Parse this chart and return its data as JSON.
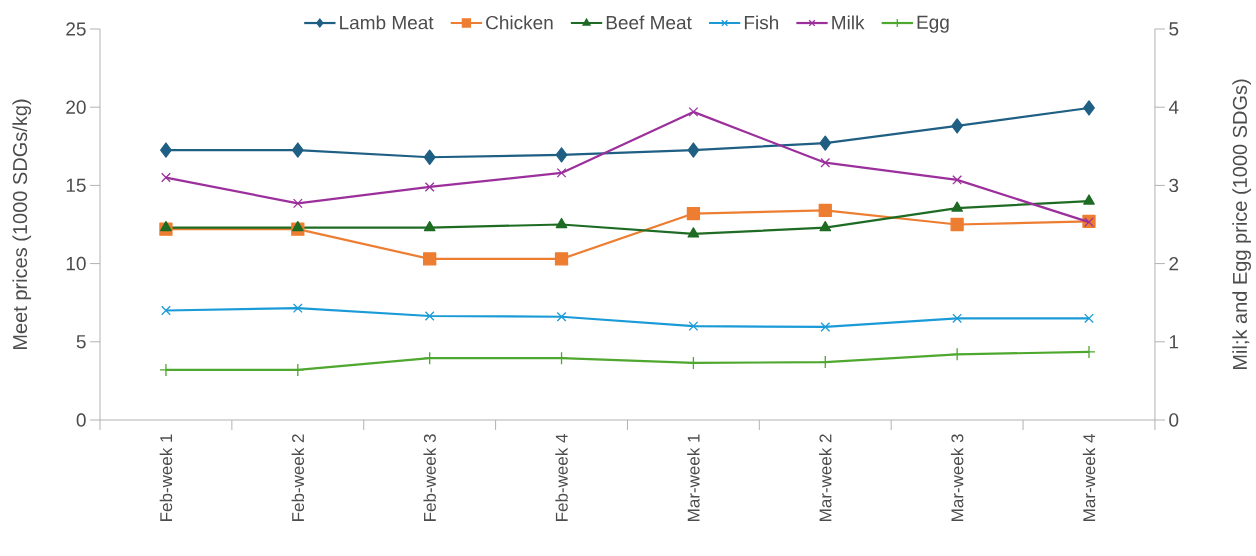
{
  "chart_data": {
    "type": "line",
    "ylabel": "Meet prices (1000 SDGs/kg)",
    "y2label": "Mil;k and Egg price (1000 SDGs)",
    "categories": [
      "Feb-week 1",
      "Feb-week 2",
      "Feb-week 3",
      "Feb-week 4",
      "Mar-week 1",
      "Mar-week 2",
      "Mar-week 3",
      "Mar-week 4"
    ],
    "series": [
      {
        "name": "Lamb Meat",
        "color": "#1f5f84",
        "marker": "diamond",
        "values": [
          17.26,
          17.26,
          16.8,
          16.95,
          17.26,
          17.7,
          18.8,
          19.95
        ]
      },
      {
        "name": "Chicken",
        "color": "#ed7d31",
        "marker": "square",
        "values": [
          12.2,
          12.2,
          10.3,
          10.3,
          13.2,
          13.4,
          12.5,
          12.7
        ]
      },
      {
        "name": "Beef Meat",
        "color": "#1e6b24",
        "marker": "triangle",
        "values": [
          12.3,
          12.3,
          12.3,
          12.5,
          11.9,
          12.3,
          13.55,
          14.0
        ]
      },
      {
        "name": "Fish",
        "color": "#1a9bd7",
        "marker": "cross",
        "values": [
          7.0,
          7.15,
          6.65,
          6.6,
          6.0,
          5.95,
          6.5,
          6.5
        ]
      },
      {
        "name": "Milk",
        "color": "#9b2f9b",
        "marker": "cross",
        "axis": "y2",
        "values": [
          3.1,
          2.77,
          2.98,
          3.16,
          3.94,
          3.29,
          3.07,
          2.53
        ]
      },
      {
        "name": "Egg",
        "color": "#4ea72e",
        "marker": "plus",
        "axis": "y2",
        "values": [
          0.64,
          0.64,
          0.79,
          0.79,
          0.73,
          0.74,
          0.84,
          0.87
        ]
      }
    ],
    "ylim": [
      0,
      25
    ],
    "yticks": [
      0,
      5,
      10,
      15,
      20,
      25
    ],
    "y2lim": [
      0,
      5
    ],
    "y2ticks": [
      0,
      1,
      2,
      3,
      4,
      5
    ],
    "grid": false,
    "legend": "top",
    "line_style": "solid"
  }
}
